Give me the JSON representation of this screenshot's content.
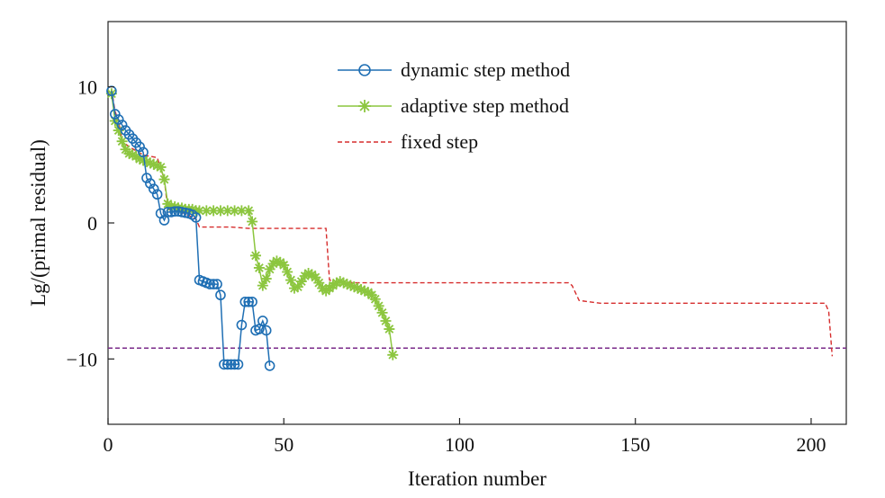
{
  "chart_data": {
    "type": "line",
    "title": "",
    "xlabel": "Iteration number",
    "ylabel": "Lg/(primal residual)",
    "xlim": [
      0,
      210
    ],
    "ylim": [
      -14.8,
      14.8
    ],
    "xticks": [
      0,
      50,
      100,
      150,
      200
    ],
    "yticks": [
      -10,
      0,
      10
    ],
    "ytick_labels": [
      "−10",
      "0",
      "10"
    ],
    "grid": false,
    "legend_position": "top-center",
    "threshold": {
      "y": -9.2,
      "color": "#7a2a8a"
    },
    "series": [
      {
        "name": "dynamic step method",
        "color": "#1f6fb4",
        "marker": "circle",
        "linestyle": "solid",
        "points": [
          [
            1,
            9.7
          ],
          [
            2,
            8.0
          ],
          [
            3,
            7.6
          ],
          [
            4,
            7.2
          ],
          [
            5,
            6.8
          ],
          [
            6,
            6.5
          ],
          [
            7,
            6.2
          ],
          [
            8,
            5.9
          ],
          [
            9,
            5.6
          ],
          [
            10,
            5.2
          ],
          [
            11,
            3.3
          ],
          [
            12,
            2.9
          ],
          [
            13,
            2.5
          ],
          [
            14,
            2.1
          ],
          [
            15,
            0.7
          ],
          [
            16,
            0.2
          ],
          [
            17,
            0.8
          ],
          [
            18,
            0.8
          ],
          [
            19,
            0.85
          ],
          [
            20,
            0.85
          ],
          [
            21,
            0.8
          ],
          [
            22,
            0.75
          ],
          [
            23,
            0.7
          ],
          [
            24,
            0.6
          ],
          [
            25,
            0.4
          ],
          [
            26,
            -4.2
          ],
          [
            27,
            -4.3
          ],
          [
            28,
            -4.4
          ],
          [
            29,
            -4.5
          ],
          [
            30,
            -4.5
          ],
          [
            31,
            -4.5
          ],
          [
            32,
            -5.3
          ],
          [
            33,
            -10.4
          ],
          [
            34,
            -10.4
          ],
          [
            35,
            -10.4
          ],
          [
            36,
            -10.4
          ],
          [
            37,
            -10.4
          ],
          [
            38,
            -7.5
          ],
          [
            39,
            -5.8
          ],
          [
            40,
            -5.8
          ],
          [
            41,
            -5.8
          ],
          [
            42,
            -7.9
          ],
          [
            43,
            -7.8
          ],
          [
            44,
            -7.2
          ],
          [
            45,
            -7.9
          ],
          [
            46,
            -10.5
          ]
        ]
      },
      {
        "name": "adaptive step method",
        "color": "#8cc63f",
        "marker": "star",
        "linestyle": "solid",
        "points": [
          [
            1,
            9.5
          ],
          [
            2,
            7.5
          ],
          [
            3,
            6.8
          ],
          [
            4,
            6.0
          ],
          [
            5,
            5.4
          ],
          [
            6,
            5.1
          ],
          [
            7,
            5.0
          ],
          [
            8,
            4.9
          ],
          [
            9,
            4.7
          ],
          [
            10,
            4.6
          ],
          [
            11,
            4.5
          ],
          [
            12,
            4.4
          ],
          [
            13,
            4.3
          ],
          [
            14,
            4.2
          ],
          [
            15,
            4.1
          ],
          [
            16,
            3.2
          ],
          [
            17,
            1.4
          ],
          [
            18,
            1.2
          ],
          [
            19,
            1.2
          ],
          [
            20,
            1.1
          ],
          [
            21,
            1.1
          ],
          [
            22,
            1.0
          ],
          [
            23,
            1.0
          ],
          [
            24,
            1.0
          ],
          [
            25,
            0.9
          ],
          [
            26,
            0.9
          ],
          [
            28,
            0.9
          ],
          [
            30,
            0.9
          ],
          [
            32,
            0.9
          ],
          [
            34,
            0.9
          ],
          [
            36,
            0.9
          ],
          [
            38,
            0.9
          ],
          [
            40,
            0.9
          ],
          [
            41,
            0.1
          ],
          [
            42,
            -2.4
          ],
          [
            43,
            -3.3
          ],
          [
            44,
            -4.6
          ],
          [
            45,
            -4.1
          ],
          [
            46,
            -3.4
          ],
          [
            47,
            -3.0
          ],
          [
            48,
            -2.8
          ],
          [
            49,
            -2.9
          ],
          [
            50,
            -3.1
          ],
          [
            51,
            -3.6
          ],
          [
            52,
            -4.2
          ],
          [
            53,
            -4.8
          ],
          [
            54,
            -4.7
          ],
          [
            55,
            -4.3
          ],
          [
            56,
            -3.9
          ],
          [
            57,
            -3.7
          ],
          [
            58,
            -3.8
          ],
          [
            59,
            -4.0
          ],
          [
            60,
            -4.4
          ],
          [
            61,
            -4.8
          ],
          [
            62,
            -5.0
          ],
          [
            63,
            -4.8
          ],
          [
            64,
            -4.6
          ],
          [
            65,
            -4.4
          ],
          [
            66,
            -4.3
          ],
          [
            67,
            -4.4
          ],
          [
            68,
            -4.5
          ],
          [
            69,
            -4.6
          ],
          [
            70,
            -4.7
          ],
          [
            71,
            -4.8
          ],
          [
            72,
            -4.9
          ],
          [
            73,
            -5.0
          ],
          [
            74,
            -5.1
          ],
          [
            75,
            -5.3
          ],
          [
            76,
            -5.6
          ],
          [
            77,
            -6.1
          ],
          [
            78,
            -6.6
          ],
          [
            79,
            -7.2
          ],
          [
            80,
            -7.8
          ],
          [
            81,
            -9.7
          ]
        ]
      },
      {
        "name": "fixed step",
        "color": "#d62d2d",
        "marker": "none",
        "linestyle": "dashed",
        "points": [
          [
            1,
            9.8
          ],
          [
            2,
            8.2
          ],
          [
            3,
            7.5
          ],
          [
            4,
            6.0
          ],
          [
            6,
            5.6
          ],
          [
            10,
            5.0
          ],
          [
            14,
            4.8
          ],
          [
            16,
            3.2
          ],
          [
            17,
            1.0
          ],
          [
            20,
            0.9
          ],
          [
            25,
            0.3
          ],
          [
            26,
            -0.3
          ],
          [
            35,
            -0.3
          ],
          [
            40,
            -0.4
          ],
          [
            45,
            -0.4
          ],
          [
            55,
            -0.4
          ],
          [
            62,
            -0.4
          ],
          [
            63,
            -4.2
          ],
          [
            65,
            -4.3
          ],
          [
            70,
            -4.4
          ],
          [
            100,
            -4.4
          ],
          [
            131,
            -4.4
          ],
          [
            132,
            -4.6
          ],
          [
            134,
            -5.7
          ],
          [
            140,
            -5.9
          ],
          [
            180,
            -5.9
          ],
          [
            204,
            -5.9
          ],
          [
            205,
            -6.5
          ],
          [
            206,
            -9.8
          ]
        ]
      }
    ]
  }
}
